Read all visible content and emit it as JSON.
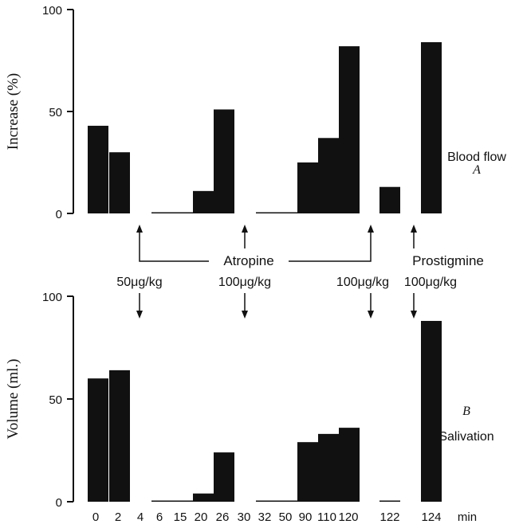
{
  "colors": {
    "bar": "#111111",
    "axis": "#111111",
    "background": "#ffffff"
  },
  "chart_data": [
    {
      "panel": "A",
      "type": "bar",
      "ylabel": "Increase (%)",
      "ylim": [
        0,
        100
      ],
      "yticks": [
        "0",
        "50",
        "100"
      ],
      "panel_letter": "A",
      "panel_label": "Blood flow",
      "x_times": [
        "0",
        "2",
        "4",
        "6",
        "15",
        "20",
        "26",
        "30",
        "32",
        "50",
        "90",
        "110",
        "120",
        "122",
        "124"
      ],
      "values": [
        43,
        30,
        0,
        0.5,
        0.5,
        11,
        51,
        0,
        0.5,
        0.5,
        25,
        37,
        82,
        13,
        84
      ]
    },
    {
      "panel": "B",
      "type": "bar",
      "ylabel": "Volume (ml.)",
      "ylim": [
        0,
        100
      ],
      "yticks": [
        "0",
        "50",
        "100"
      ],
      "panel_letter": "B",
      "panel_label": "Salivation",
      "x_times": [
        "0",
        "2",
        "4",
        "6",
        "15",
        "20",
        "26",
        "30",
        "32",
        "50",
        "90",
        "110",
        "120",
        "122",
        "124"
      ],
      "values": [
        60,
        64,
        0,
        0.5,
        0.5,
        4,
        24,
        0,
        0.5,
        0.5,
        29,
        33,
        36,
        0.5,
        88
      ]
    }
  ],
  "annotations": {
    "atropine": "Atropine",
    "prostigmine": "Prostigmine",
    "doses": [
      "50μg/kg",
      "100μg/kg",
      "100μg/kg",
      "100μg/kg"
    ],
    "x_unit": "min"
  }
}
